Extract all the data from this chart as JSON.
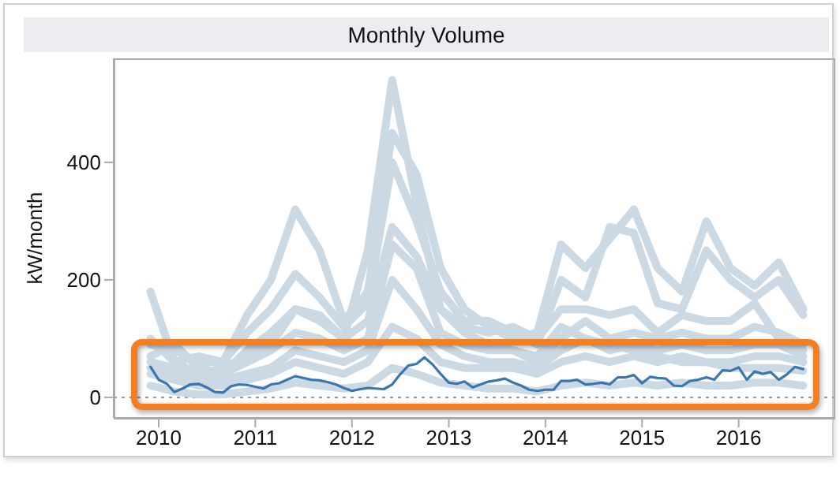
{
  "chart_data": {
    "type": "line",
    "title": "Monthly Volume",
    "ylabel": "kW/month",
    "xlim": [
      "2009-07-15",
      "2016-12-25"
    ],
    "ylim": [
      -35,
      577
    ],
    "yticks": [
      0,
      200,
      400
    ],
    "xticks": [
      "2010",
      "2011",
      "2012",
      "2013",
      "2014",
      "2015",
      "2016"
    ],
    "ref_lines": [
      {
        "axis": "y",
        "value": 0,
        "color": "#999999",
        "line_style": "dotted"
      }
    ],
    "x": [
      "2009-12",
      "2010-01",
      "2010-02",
      "2010-03",
      "2010-04",
      "2010-05",
      "2010-06",
      "2010-07",
      "2010-08",
      "2010-09",
      "2010-10",
      "2010-11",
      "2010-12",
      "2011-01",
      "2011-02",
      "2011-03",
      "2011-04",
      "2011-05",
      "2011-06",
      "2011-07",
      "2011-08",
      "2011-09",
      "2011-10",
      "2011-11",
      "2011-12",
      "2012-01",
      "2012-02",
      "2012-03",
      "2012-04",
      "2012-05",
      "2012-06",
      "2012-07",
      "2012-08",
      "2012-09",
      "2012-10",
      "2012-11",
      "2012-12",
      "2013-01",
      "2013-02",
      "2013-03",
      "2013-04",
      "2013-05",
      "2013-06",
      "2013-07",
      "2013-08",
      "2013-09",
      "2013-10",
      "2013-11",
      "2013-12",
      "2014-01",
      "2014-02",
      "2014-03",
      "2014-04",
      "2014-05",
      "2014-06",
      "2014-07",
      "2014-08",
      "2014-09",
      "2014-10",
      "2014-11",
      "2014-12",
      "2015-01",
      "2015-02",
      "2015-03",
      "2015-04",
      "2015-05",
      "2015-06",
      "2015-07",
      "2015-08",
      "2015-09",
      "2015-10",
      "2015-11",
      "2015-12",
      "2016-01",
      "2016-02",
      "2016-03",
      "2016-04",
      "2016-05",
      "2016-06",
      "2016-07",
      "2016-08",
      "2016-09"
    ],
    "series": [
      {
        "color": "#cbd9e5",
        "x": [
          "2009-12",
          "2010-03",
          "2010-06",
          "2010-09",
          "2010-12",
          "2011-03",
          "2011-06",
          "2011-09",
          "2011-12",
          "2012-03",
          "2012-06",
          "2012-09",
          "2012-12",
          "2013-03",
          "2013-06",
          "2013-09",
          "2013-12",
          "2014-03",
          "2014-06",
          "2014-09",
          "2014-12",
          "2015-03",
          "2015-06",
          "2015-09",
          "2015-12",
          "2016-03",
          "2016-06",
          "2016-09"
        ],
        "values": [
          180,
          60,
          40,
          50,
          70,
          90,
          150,
          130,
          100,
          250,
          540,
          330,
          150,
          110,
          90,
          80,
          70,
          120,
          100,
          90,
          80,
          70,
          60,
          60,
          50,
          50,
          50,
          45
        ]
      },
      {
        "color": "#cbd9e5",
        "x": [
          "2009-12",
          "2010-03",
          "2010-06",
          "2010-09",
          "2010-12",
          "2011-03",
          "2011-06",
          "2011-09",
          "2011-12",
          "2012-03",
          "2012-06",
          "2012-09",
          "2012-12",
          "2013-03",
          "2013-06",
          "2013-09",
          "2013-12",
          "2014-03",
          "2014-06",
          "2014-09",
          "2014-12",
          "2015-03",
          "2015-06",
          "2015-09",
          "2015-12",
          "2016-03",
          "2016-06",
          "2016-09"
        ],
        "values": [
          100,
          60,
          70,
          60,
          140,
          200,
          320,
          250,
          130,
          180,
          450,
          380,
          220,
          150,
          120,
          100,
          110,
          260,
          220,
          270,
          320,
          220,
          180,
          300,
          220,
          190,
          230,
          150
        ]
      },
      {
        "color": "#cbd9e5",
        "x": [
          "2009-12",
          "2010-03",
          "2010-06",
          "2010-09",
          "2010-12",
          "2011-03",
          "2011-06",
          "2011-09",
          "2011-12",
          "2012-03",
          "2012-06",
          "2012-09",
          "2012-12",
          "2013-03",
          "2013-06",
          "2013-09",
          "2013-12",
          "2014-03",
          "2014-06",
          "2014-09",
          "2014-12",
          "2015-03",
          "2015-06",
          "2015-09",
          "2015-12",
          "2016-03",
          "2016-06",
          "2016-09"
        ],
        "values": [
          90,
          80,
          60,
          60,
          110,
          150,
          210,
          170,
          120,
          160,
          400,
          300,
          180,
          130,
          130,
          110,
          90,
          200,
          170,
          290,
          280,
          160,
          150,
          250,
          200,
          170,
          200,
          140
        ]
      },
      {
        "color": "#cbd9e5",
        "x": [
          "2009-12",
          "2010-03",
          "2010-06",
          "2010-09",
          "2010-12",
          "2011-03",
          "2011-06",
          "2011-09",
          "2011-12",
          "2012-03",
          "2012-06",
          "2012-09",
          "2012-12",
          "2013-03",
          "2013-06",
          "2013-09",
          "2013-12",
          "2014-03",
          "2014-06",
          "2014-09",
          "2014-12",
          "2015-03",
          "2015-06",
          "2015-09",
          "2015-12",
          "2016-03",
          "2016-06",
          "2016-09"
        ],
        "values": [
          70,
          90,
          50,
          40,
          80,
          110,
          150,
          140,
          100,
          130,
          290,
          240,
          150,
          120,
          110,
          120,
          100,
          150,
          150,
          140,
          150,
          110,
          140,
          130,
          130,
          160,
          100,
          80
        ]
      },
      {
        "color": "#cbd9e5",
        "x": [
          "2009-12",
          "2010-03",
          "2010-06",
          "2010-09",
          "2010-12",
          "2011-03",
          "2011-06",
          "2011-09",
          "2011-12",
          "2012-03",
          "2012-06",
          "2012-09",
          "2012-12",
          "2013-03",
          "2013-06",
          "2013-09",
          "2013-12",
          "2014-03",
          "2014-06",
          "2014-09",
          "2014-12",
          "2015-03",
          "2015-06",
          "2015-09",
          "2015-12",
          "2016-03",
          "2016-06",
          "2016-09"
        ],
        "values": [
          60,
          50,
          40,
          40,
          60,
          80,
          110,
          100,
          80,
          100,
          260,
          220,
          110,
          90,
          80,
          80,
          60,
          100,
          130,
          100,
          110,
          100,
          110,
          100,
          100,
          120,
          110,
          90
        ]
      },
      {
        "color": "#cbd9e5",
        "x": [
          "2009-12",
          "2010-03",
          "2010-06",
          "2010-09",
          "2010-12",
          "2011-03",
          "2011-06",
          "2011-09",
          "2011-12",
          "2012-03",
          "2012-06",
          "2012-09",
          "2012-12",
          "2013-03",
          "2013-06",
          "2013-09",
          "2013-12",
          "2014-03",
          "2014-06",
          "2014-09",
          "2014-12",
          "2015-03",
          "2015-06",
          "2015-09",
          "2015-12",
          "2016-03",
          "2016-06",
          "2016-09"
        ],
        "values": [
          50,
          40,
          30,
          30,
          40,
          50,
          80,
          70,
          60,
          80,
          200,
          150,
          90,
          70,
          60,
          60,
          50,
          80,
          100,
          80,
          90,
          80,
          90,
          80,
          80,
          90,
          90,
          70
        ]
      },
      {
        "color": "#cbd9e5",
        "x": [
          "2009-12",
          "2010-03",
          "2010-06",
          "2010-09",
          "2010-12",
          "2011-03",
          "2011-06",
          "2011-09",
          "2011-12",
          "2012-03",
          "2012-06",
          "2012-09",
          "2012-12",
          "2013-03",
          "2013-06",
          "2013-09",
          "2013-12",
          "2014-03",
          "2014-06",
          "2014-09",
          "2014-12",
          "2015-03",
          "2015-06",
          "2015-09",
          "2015-12",
          "2016-03",
          "2016-06",
          "2016-09"
        ],
        "values": [
          40,
          30,
          20,
          20,
          30,
          40,
          60,
          50,
          40,
          60,
          120,
          100,
          60,
          50,
          50,
          50,
          40,
          60,
          70,
          60,
          70,
          60,
          70,
          60,
          60,
          70,
          70,
          60
        ]
      },
      {
        "color": "#cbd9e5",
        "x": [
          "2009-12",
          "2010-03",
          "2010-06",
          "2010-09",
          "2010-12",
          "2011-03",
          "2011-06",
          "2011-09",
          "2011-12",
          "2012-03",
          "2012-06",
          "2012-09",
          "2012-12",
          "2013-03",
          "2013-06",
          "2013-09",
          "2013-12",
          "2014-03",
          "2014-06",
          "2014-09",
          "2014-12",
          "2015-03",
          "2015-06",
          "2015-09",
          "2015-12",
          "2016-03",
          "2016-06",
          "2016-09"
        ],
        "values": [
          20,
          10,
          5,
          5,
          10,
          15,
          25,
          20,
          15,
          20,
          50,
          40,
          25,
          20,
          15,
          15,
          10,
          20,
          25,
          20,
          25,
          20,
          25,
          20,
          20,
          25,
          25,
          20
        ]
      },
      {
        "color": "#3a76b0",
        "values": [
          52,
          30,
          23,
          9,
          15,
          22,
          23,
          17,
          9,
          8,
          19,
          22,
          21,
          18,
          15,
          22,
          24,
          30,
          36,
          33,
          30,
          29,
          26,
          22,
          16,
          11,
          14,
          16,
          15,
          14,
          22,
          39,
          54,
          57,
          68,
          56,
          40,
          25,
          23,
          27,
          17,
          22,
          27,
          29,
          32,
          25,
          20,
          13,
          11,
          13,
          13,
          28,
          28,
          30,
          22,
          23,
          25,
          22,
          34,
          34,
          38,
          24,
          35,
          33,
          32,
          20,
          19,
          28,
          30,
          34,
          30,
          46,
          45,
          51,
          30,
          44,
          40,
          43,
          30,
          39,
          52,
          48
        ]
      }
    ]
  }
}
